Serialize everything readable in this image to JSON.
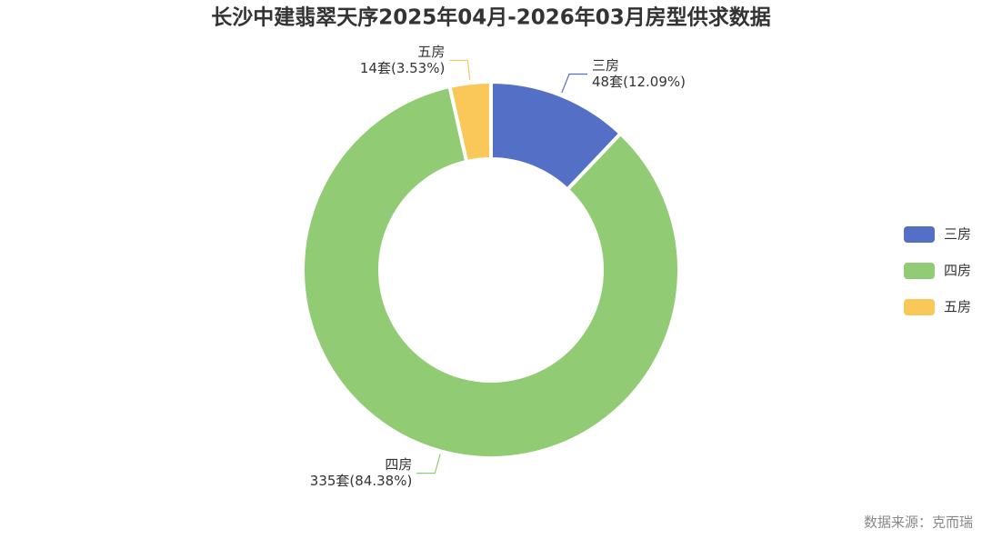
{
  "chart_data": {
    "type": "pie",
    "title": "长沙中建翡翠天序2025年04月-2026年03月房型供求数据",
    "categories": [
      "三房",
      "四房",
      "五房"
    ],
    "values": [
      48,
      335,
      14
    ],
    "value_labels": [
      "48套(12.09%)",
      "335套(84.38%)",
      "14套(3.53%)"
    ],
    "colors": [
      "#5470c6",
      "#91cc75",
      "#fac858"
    ],
    "legend": "right",
    "source": "数据来源：克而瑞"
  }
}
